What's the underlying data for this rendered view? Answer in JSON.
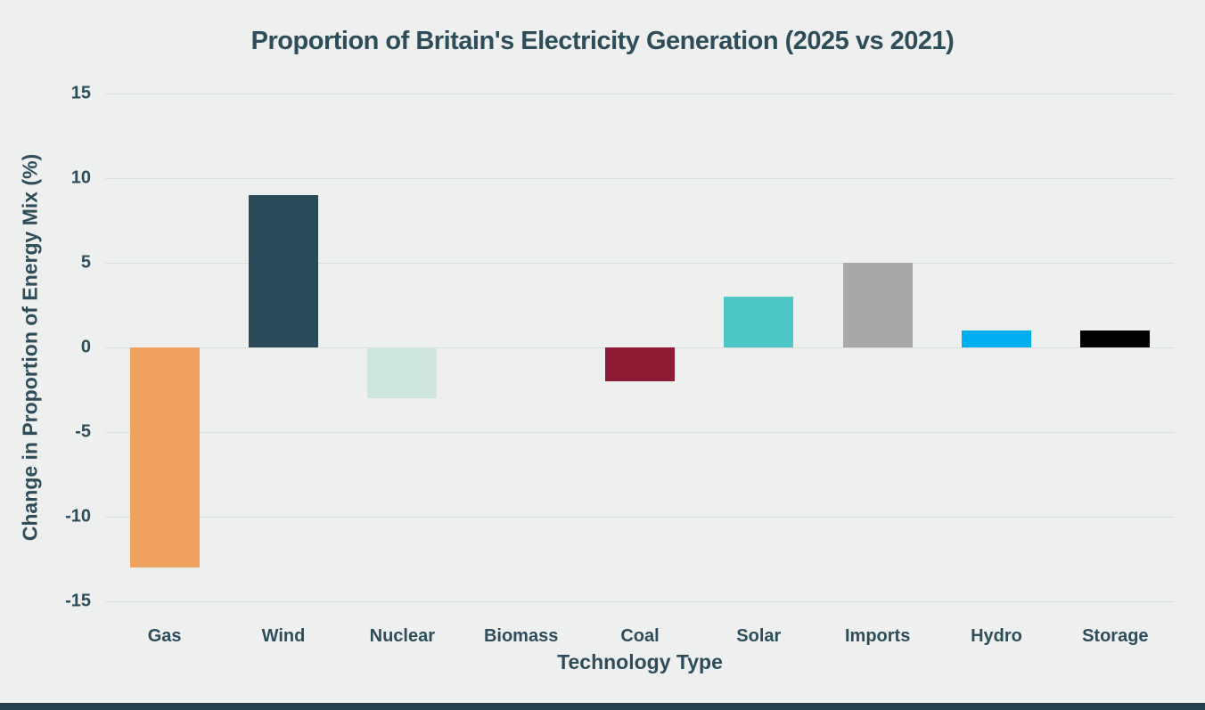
{
  "page": {
    "background_color": "#edf0ee",
    "footer_band_color": "#24404e",
    "text_color": "#2e4d5b",
    "grid_color": "#dadedb"
  },
  "chart_data": {
    "type": "bar",
    "title": "Proportion of Britain's Electricity Generation (2025 vs 2021)",
    "xlabel": "Technology Type",
    "ylabel": "Change in Proportion of Energy Mix (%)",
    "categories": [
      "Gas",
      "Wind",
      "Nuclear",
      "Biomass",
      "Coal",
      "Solar",
      "Imports",
      "Hydro",
      "Storage"
    ],
    "values": [
      -13,
      9,
      -3,
      0,
      -2,
      3,
      5,
      1,
      1
    ],
    "colors": [
      "#f0a160",
      "#2b4a59",
      "#cfe5df",
      "#edf0ee",
      "#8e1a35",
      "#4fc7c7",
      "#a9a9a9",
      "#00b0f0",
      "#000000"
    ],
    "ylim": [
      -15,
      15
    ],
    "yticks": [
      -15,
      -10,
      -5,
      0,
      5,
      10,
      15
    ],
    "grid": true,
    "legend": false
  }
}
